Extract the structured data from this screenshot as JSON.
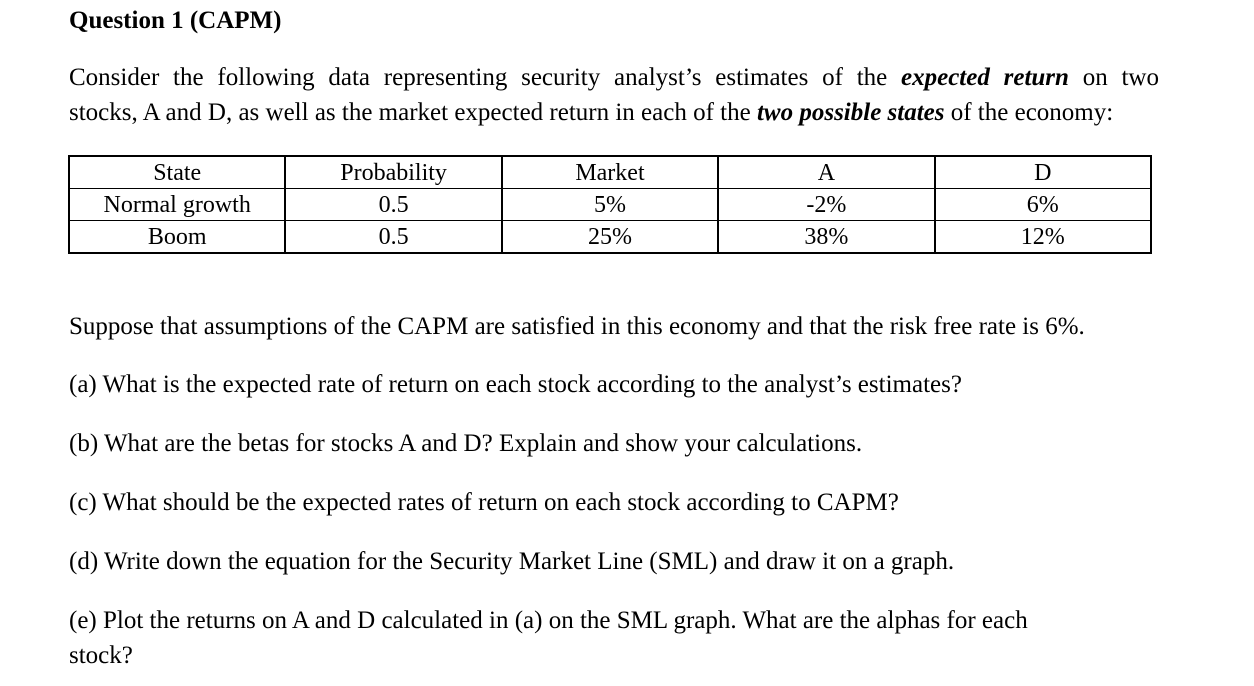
{
  "heading": "Question 1 (CAPM)",
  "intro": {
    "line1_a": "Consider the following data representing security analyst’s estimates of the ",
    "line1_emph": "expected return",
    "line1_b": " on two",
    "line2_a": "stocks, A and D, as well as the market expected return in each of the ",
    "line2_emph": "two possible states",
    "line2_b": " of the economy:"
  },
  "table": {
    "headers": [
      "State",
      "Probability",
      "Market",
      "A",
      "D"
    ],
    "rows": [
      [
        "Normal growth",
        "0.5",
        "5%",
        "-2%",
        "6%"
      ],
      [
        "Boom",
        "0.5",
        "25%",
        "38%",
        "12%"
      ]
    ]
  },
  "questions": {
    "assumption": "Suppose that assumptions of the CAPM are satisfied in this economy and that the risk free rate is 6%.",
    "a": "(a) What is the expected rate of return on each stock according to the analyst’s estimates?",
    "b": "(b) What are the betas for stocks A and D? Explain and show your calculations.",
    "c": "(c) What should be the expected rates of return on each stock according to CAPM?",
    "d": "(d) Write down the equation for the Security Market Line (SML) and draw it on a graph.",
    "e_line1": "(e) Plot the returns on A and D calculated in (a) on the SML graph. What are the alphas for each",
    "e_line2": "stock?"
  }
}
